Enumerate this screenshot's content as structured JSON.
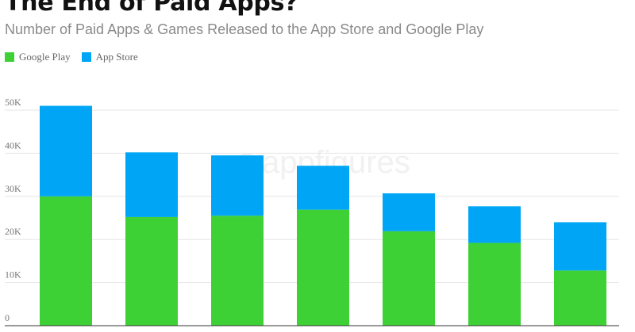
{
  "header": {
    "title": "The End of Paid Apps?",
    "subtitle": "Number of Paid Apps & Games Released to the App Store and Google Play"
  },
  "legend": [
    {
      "label": "Google Play",
      "color": "#3dd135"
    },
    {
      "label": "App Store",
      "color": "#00a6f5"
    }
  ],
  "watermark": "appfigures",
  "chart_data": {
    "type": "bar",
    "stacked": true,
    "categories": [
      "",
      "",
      "",
      "",
      "",
      "",
      ""
    ],
    "series": [
      {
        "name": "Google Play",
        "color": "#3dd135",
        "values": [
          30000,
          25200,
          25500,
          26900,
          21900,
          19200,
          12800
        ]
      },
      {
        "name": "App Store",
        "color": "#00a6f5",
        "values": [
          21000,
          15000,
          14000,
          10200,
          8800,
          8500,
          11200
        ]
      }
    ],
    "yticks": [
      0,
      10000,
      20000,
      30000,
      40000,
      50000
    ],
    "ytick_labels": [
      "0",
      "10K",
      "20K",
      "30K",
      "40K",
      "50K"
    ],
    "ylim": [
      0,
      50000
    ],
    "grid": true,
    "legend_position": "top-left"
  }
}
